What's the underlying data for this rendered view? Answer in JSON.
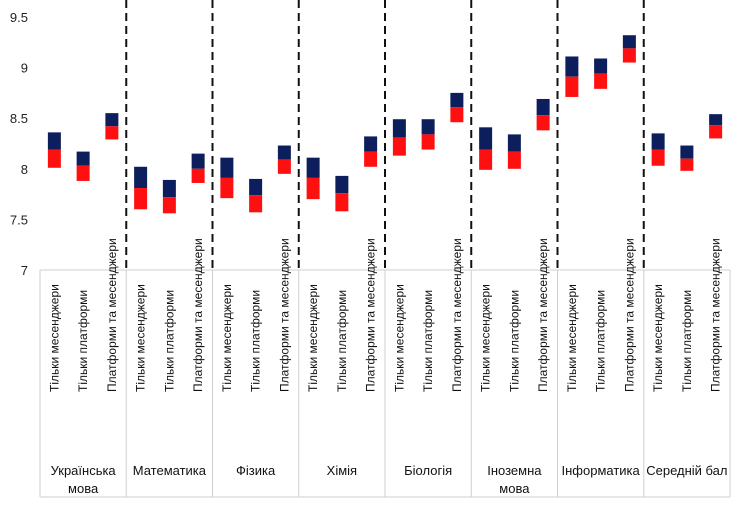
{
  "chart_data": {
    "type": "bar",
    "ylim": [
      7,
      9.5
    ],
    "yticks": [
      "7",
      "7.5",
      "8",
      "8.5",
      "9",
      "9.5"
    ],
    "categories": [
      "Тільки месенджери",
      "Тільки платформи",
      "Платформи та месенджери"
    ],
    "colors": {
      "upper": "#0c1f5c",
      "lower": "#ff1010"
    },
    "groups": [
      {
        "label": [
          "Українська",
          "мова"
        ],
        "bars": [
          {
            "low": 8.01,
            "mid": 8.19,
            "high": 8.36
          },
          {
            "low": 7.88,
            "mid": 8.03,
            "high": 8.17
          },
          {
            "low": 8.29,
            "mid": 8.42,
            "high": 8.55
          }
        ]
      },
      {
        "label": [
          "Математика"
        ],
        "bars": [
          {
            "low": 7.6,
            "mid": 7.81,
            "high": 8.02
          },
          {
            "low": 7.56,
            "mid": 7.72,
            "high": 7.89
          },
          {
            "low": 7.86,
            "mid": 8.0,
            "high": 8.15
          }
        ]
      },
      {
        "label": [
          "Фізика"
        ],
        "bars": [
          {
            "low": 7.71,
            "mid": 7.91,
            "high": 8.11
          },
          {
            "low": 7.57,
            "mid": 7.74,
            "high": 7.9
          },
          {
            "low": 7.95,
            "mid": 8.09,
            "high": 8.23
          }
        ]
      },
      {
        "label": [
          "Хімія"
        ],
        "bars": [
          {
            "low": 7.7,
            "mid": 7.91,
            "high": 8.11
          },
          {
            "low": 7.58,
            "mid": 7.76,
            "high": 7.93
          },
          {
            "low": 8.02,
            "mid": 8.17,
            "high": 8.32
          }
        ]
      },
      {
        "label": [
          "Біологія"
        ],
        "bars": [
          {
            "low": 8.13,
            "mid": 8.31,
            "high": 8.49
          },
          {
            "low": 8.19,
            "mid": 8.34,
            "high": 8.49
          },
          {
            "low": 8.46,
            "mid": 8.61,
            "high": 8.75
          }
        ]
      },
      {
        "label": [
          "Іноземна",
          "мова"
        ],
        "bars": [
          {
            "low": 7.99,
            "mid": 8.19,
            "high": 8.41
          },
          {
            "low": 8.0,
            "mid": 8.17,
            "high": 8.34
          },
          {
            "low": 8.38,
            "mid": 8.53,
            "high": 8.69
          }
        ]
      },
      {
        "label": [
          "Інформатика"
        ],
        "bars": [
          {
            "low": 8.71,
            "mid": 8.91,
            "high": 9.11
          },
          {
            "low": 8.79,
            "mid": 8.94,
            "high": 9.09
          },
          {
            "low": 9.05,
            "mid": 9.19,
            "high": 9.32
          }
        ]
      },
      {
        "label": [
          "Середній бал"
        ],
        "bars": [
          {
            "low": 8.03,
            "mid": 8.19,
            "high": 8.35
          },
          {
            "low": 7.98,
            "mid": 8.1,
            "high": 8.23
          },
          {
            "low": 8.3,
            "mid": 8.43,
            "high": 8.54
          }
        ]
      }
    ]
  }
}
